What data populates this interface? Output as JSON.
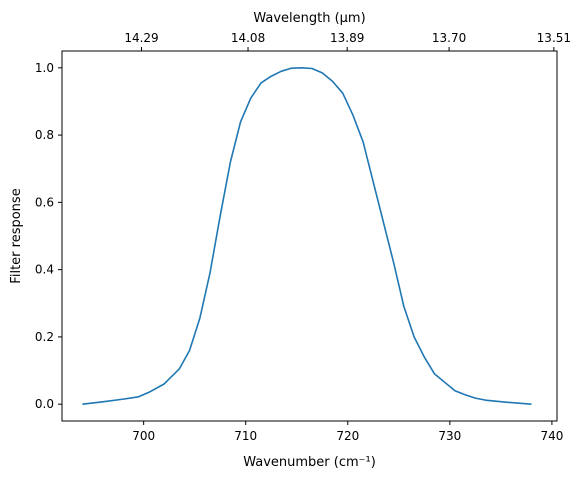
{
  "chart_data": {
    "type": "line",
    "title": "",
    "xlabel": "Wavenumber (cm⁻¹)",
    "ylabel": "Filter response",
    "top_xlabel": "Wavelength (μm)",
    "xlim": [
      692,
      740.5
    ],
    "ylim": [
      -0.05,
      1.05
    ],
    "xticks": [
      700,
      710,
      720,
      730,
      740
    ],
    "xtick_labels": [
      "700",
      "710",
      "720",
      "730",
      "740"
    ],
    "yticks": [
      0.0,
      0.2,
      0.4,
      0.6,
      0.8,
      1.0
    ],
    "ytick_labels": [
      "0.0",
      "0.2",
      "0.4",
      "0.6",
      "0.8",
      "1.0"
    ],
    "top_xtick_labels": [
      "14.29",
      "14.08",
      "13.89",
      "13.70",
      "13.51"
    ],
    "grid": false,
    "line_color": "#1f77b4",
    "series": [
      {
        "x": [
          694,
          696,
          698,
          699.5,
          700.5,
          702,
          703.5,
          704.5,
          705.5,
          706.5,
          707.5,
          708.5,
          709.5,
          710.5,
          711.5,
          712.5,
          713.5,
          714.5,
          715.5,
          716.5,
          717.5,
          718.5,
          719.5,
          720.5,
          721.5,
          722.5,
          723.5,
          724.5,
          725.5,
          726.5,
          727.5,
          728.5,
          729.5,
          730.5,
          731.5,
          732.5,
          733.5,
          735.5,
          738
        ],
        "y": [
          0.0,
          0.007,
          0.015,
          0.022,
          0.035,
          0.06,
          0.105,
          0.16,
          0.255,
          0.39,
          0.56,
          0.72,
          0.84,
          0.91,
          0.955,
          0.975,
          0.99,
          0.999,
          1.0,
          0.998,
          0.985,
          0.96,
          0.925,
          0.86,
          0.78,
          0.66,
          0.54,
          0.42,
          0.29,
          0.2,
          0.14,
          0.09,
          0.065,
          0.04,
          0.028,
          0.018,
          0.012,
          0.006,
          0.0
        ]
      }
    ]
  }
}
